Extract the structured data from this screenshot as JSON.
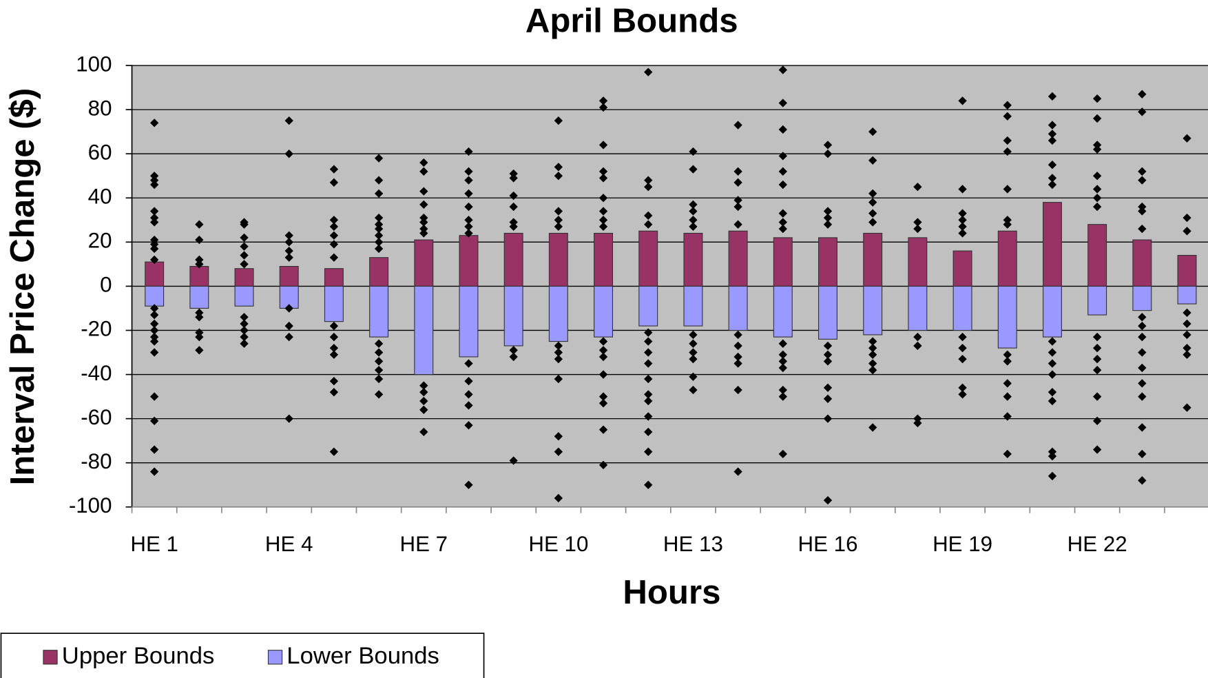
{
  "chart_data": {
    "type": "bar",
    "title": "April Bounds",
    "x_label": "Hours",
    "y_label": "Interval Price Change ($)",
    "categories": [
      "HE 1",
      null,
      null,
      "HE 4",
      null,
      null,
      "HE 7",
      null,
      null,
      "HE 10",
      null,
      null,
      "HE 13",
      null,
      null,
      "HE 16",
      null,
      null,
      "HE 19",
      null,
      null,
      "HE 22",
      null,
      null
    ],
    "series": [
      {
        "name": "Upper Bounds",
        "color": "#993366",
        "values": [
          11,
          9,
          8,
          9,
          8,
          13,
          21,
          23,
          24,
          24,
          24,
          25,
          24,
          25,
          22,
          22,
          24,
          22,
          16,
          25,
          38,
          28,
          21,
          14
        ]
      },
      {
        "name": "Lower Bounds",
        "color": "#9999ff",
        "values": [
          -9,
          -10,
          -9,
          -10,
          -16,
          -23,
          -40,
          -32,
          -27,
          -25,
          -23,
          -18,
          -18,
          -20,
          -23,
          -24,
          -22,
          -20,
          -20,
          -28,
          -23,
          -13,
          -11,
          -8
        ]
      }
    ],
    "points_color": "#000000",
    "points": [
      [
        74,
        50,
        48,
        46,
        34,
        31,
        29,
        21,
        19,
        17,
        12,
        -10,
        -13,
        -17,
        -20,
        -23,
        -25,
        -30,
        -50,
        -61,
        -74,
        -84
      ],
      [
        28,
        21,
        12,
        10,
        -12,
        -14,
        -21,
        -23,
        -29
      ],
      [
        29,
        28,
        22,
        18,
        14,
        10,
        -14,
        -17,
        -20,
        -23,
        -26
      ],
      [
        75,
        60,
        23,
        20,
        16,
        13,
        -10,
        -18,
        -23,
        -60
      ],
      [
        53,
        47,
        30,
        27,
        23,
        19,
        13,
        -18,
        -23,
        -28,
        -31,
        -43,
        -48,
        -75
      ],
      [
        58,
        48,
        42,
        31,
        28,
        26,
        23,
        20,
        17,
        -26,
        -30,
        -34,
        -38,
        -42,
        -49
      ],
      [
        56,
        52,
        43,
        37,
        31,
        29,
        26,
        24,
        -45,
        -48,
        -52,
        -56,
        -66
      ],
      [
        61,
        52,
        48,
        42,
        36,
        30,
        27,
        24,
        -35,
        -43,
        -49,
        -54,
        -63,
        -90
      ],
      [
        51,
        49,
        41,
        36,
        29,
        27,
        -29,
        -32,
        -79
      ],
      [
        75,
        54,
        50,
        34,
        30,
        27,
        -27,
        -30,
        -33,
        -42,
        -68,
        -75,
        -96
      ],
      [
        84,
        81,
        64,
        52,
        49,
        40,
        34,
        30,
        27,
        -25,
        -29,
        -32,
        -40,
        -50,
        -53,
        -65,
        -81
      ],
      [
        97,
        48,
        45,
        32,
        28,
        -21,
        -25,
        -30,
        -35,
        -42,
        -49,
        -52,
        -59,
        -66,
        -75,
        -90
      ],
      [
        61,
        53,
        37,
        34,
        30,
        27,
        -22,
        -26,
        -30,
        -33,
        -41,
        -47
      ],
      [
        73,
        52,
        47,
        39,
        36,
        28,
        -22,
        -27,
        -32,
        -35,
        -47,
        -84
      ],
      [
        98,
        83,
        71,
        59,
        52,
        46,
        33,
        29,
        26,
        -26,
        -31,
        -34,
        -37,
        -47,
        -50,
        -76
      ],
      [
        64,
        60,
        34,
        31,
        28,
        -27,
        -31,
        -34,
        -46,
        -51,
        -60,
        -97
      ],
      [
        70,
        57,
        42,
        38,
        33,
        29,
        -25,
        -28,
        -31,
        -35,
        -38,
        -64
      ],
      [
        45,
        29,
        26,
        -23,
        -27,
        -60,
        -62
      ],
      [
        84,
        44,
        33,
        30,
        27,
        24,
        -23,
        -28,
        -33,
        -46,
        -49
      ],
      [
        82,
        77,
        66,
        61,
        44,
        30,
        28,
        -31,
        -34,
        -44,
        -50,
        -59,
        -76
      ],
      [
        86,
        73,
        69,
        66,
        55,
        49,
        46,
        -25,
        -30,
        -35,
        -40,
        -48,
        -52,
        -75,
        -77,
        -86
      ],
      [
        85,
        76,
        64,
        62,
        50,
        44,
        40,
        36,
        -23,
        -28,
        -33,
        -38,
        -50,
        -61,
        -74
      ],
      [
        87,
        79,
        52,
        48,
        36,
        34,
        26,
        -14,
        -18,
        -23,
        -30,
        -37,
        -44,
        -50,
        -64,
        -76,
        -88
      ],
      [
        67,
        31,
        25,
        -12,
        -17,
        -22,
        -28,
        -31,
        -55
      ]
    ],
    "ylim": [
      -100,
      100
    ],
    "yticks": [
      -100,
      -80,
      -60,
      -40,
      -20,
      0,
      20,
      40,
      60,
      80,
      100
    ],
    "grid": true,
    "plot_background": "#c0c0c0",
    "legend": "bottom-left"
  }
}
